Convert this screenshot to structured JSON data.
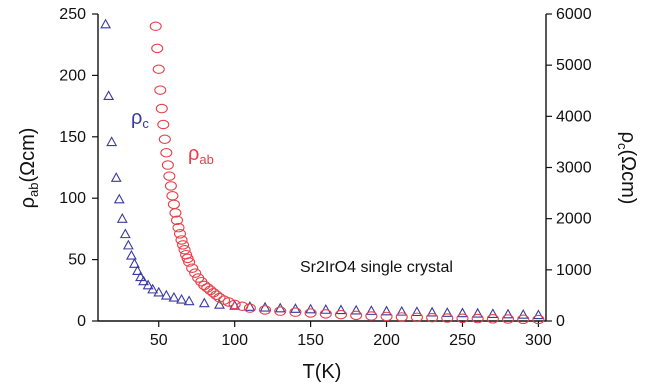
{
  "chart_data": {
    "type": "scatter",
    "annotation": "Sr2IrO4 single crystal",
    "x_axis": {
      "label": "T(K)",
      "range": [
        10,
        305
      ],
      "ticks": [
        "50",
        "100",
        "150",
        "200",
        "250",
        "300"
      ]
    },
    "y_axis_left": {
      "label_main": "ρ",
      "label_sub": "ab",
      "label_unit": "(Ωcm)",
      "range": [
        0,
        250
      ],
      "ticks": [
        "0",
        "50",
        "100",
        "150",
        "200",
        "250"
      ]
    },
    "y_axis_right": {
      "label_main": "ρ",
      "label_sub": "c",
      "label_unit": "(Ωcm)",
      "range": [
        0,
        6000
      ],
      "ticks": [
        "0",
        "1000",
        "2000",
        "3000",
        "4000",
        "5000",
        "6000"
      ]
    },
    "series": [
      {
        "label_main": "ρ",
        "label_sub": "c",
        "axis": "right",
        "marker": "triangle",
        "color": "#3a3aa0",
        "x": [
          15,
          17,
          19,
          22,
          24,
          26,
          28,
          30,
          32,
          34,
          36,
          38,
          40,
          43,
          46,
          50,
          55,
          60,
          65,
          70,
          80,
          90,
          100,
          110,
          120,
          130,
          140,
          150,
          160,
          170,
          180,
          190,
          200,
          210,
          220,
          230,
          240,
          250,
          260,
          270,
          280,
          290,
          300
        ],
        "y": [
          5800,
          4400,
          3500,
          2800,
          2380,
          2000,
          1700,
          1480,
          1280,
          1120,
          980,
          860,
          780,
          700,
          620,
          560,
          500,
          460,
          420,
          390,
          350,
          320,
          300,
          280,
          265,
          250,
          240,
          230,
          222,
          215,
          208,
          200,
          192,
          185,
          178,
          170,
          162,
          155,
          148,
          140,
          132,
          125,
          118
        ]
      },
      {
        "label_main": "ρ",
        "label_sub": "ab",
        "axis": "left",
        "marker": "circle",
        "color": "#e8404a",
        "x": [
          48,
          49,
          50,
          51,
          52,
          53,
          54,
          55,
          56,
          57,
          58,
          59,
          60,
          61,
          62,
          63,
          64,
          65,
          66,
          67,
          68,
          69,
          70,
          72,
          74,
          76,
          78,
          80,
          82,
          84,
          86,
          88,
          90,
          93,
          96,
          100,
          105,
          110,
          120,
          130,
          140,
          150,
          160,
          170,
          180,
          190,
          200,
          210,
          220,
          230,
          240,
          250,
          260,
          270,
          280,
          290,
          300
        ],
        "y": [
          240,
          222,
          205,
          188,
          173,
          160,
          148,
          137,
          127,
          118,
          110,
          102,
          95,
          88,
          82,
          76,
          71,
          66,
          62,
          58,
          54,
          51,
          48,
          43,
          39,
          35,
          32,
          29,
          27,
          25,
          23,
          21,
          19,
          17,
          15.5,
          13.5,
          12,
          10.5,
          9,
          8,
          7.2,
          6.5,
          5.8,
          5.2,
          4.6,
          4.1,
          3.7,
          3.3,
          3.0,
          2.7,
          2.4,
          2.2,
          2.0,
          1.8,
          1.6,
          1.4,
          1.2
        ]
      }
    ]
  }
}
